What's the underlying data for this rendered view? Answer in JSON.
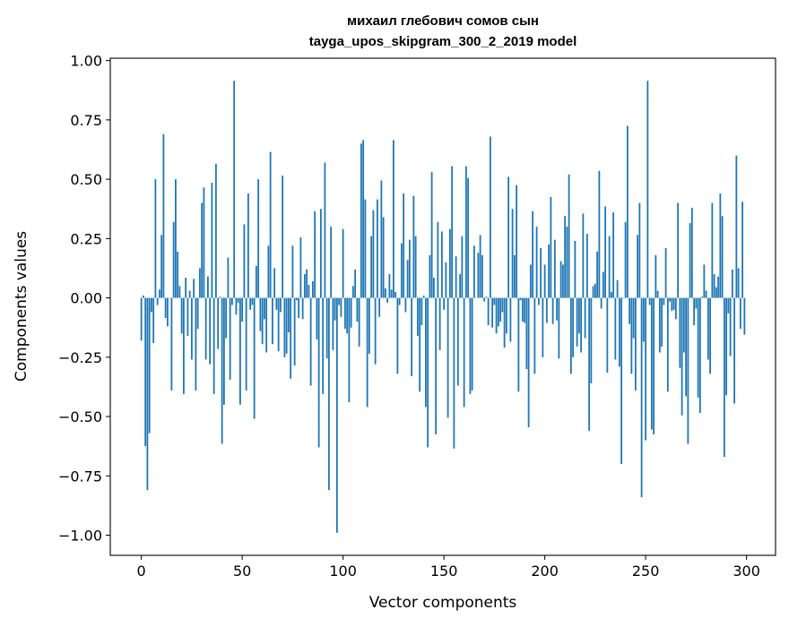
{
  "chart_data": {
    "type": "bar",
    "title_line1": "михаил глебович сомов сын",
    "title_line2": "tayga_upos_skipgram_300_2_2019 model",
    "xlabel": "Vector components",
    "ylabel": "Components values",
    "xlim": [
      -15.4,
      314.4
    ],
    "ylim": [
      -1.085,
      1.01
    ],
    "xticks": [
      0,
      50,
      100,
      150,
      200,
      250,
      300
    ],
    "xtick_labels": [
      "0",
      "50",
      "100",
      "150",
      "200",
      "250",
      "300"
    ],
    "yticks": [
      -1.0,
      -0.75,
      -0.5,
      -0.25,
      0.0,
      0.25,
      0.5,
      0.75,
      1.0
    ],
    "ytick_labels": [
      "−1.00",
      "−0.75",
      "−0.50",
      "−0.25",
      "0.00",
      "0.25",
      "0.50",
      "0.75",
      "1.00"
    ],
    "bar_color": "#1f77b4",
    "grid": false,
    "values": [
      -0.18,
      0.01,
      -0.625,
      -0.81,
      -0.57,
      -0.06,
      -0.19,
      0.5,
      -0.03,
      0.035,
      0.265,
      0.69,
      -0.085,
      -0.12,
      0.0,
      -0.39,
      0.32,
      0.5,
      0.195,
      0.05,
      -0.15,
      -0.405,
      0.085,
      -0.16,
      0.03,
      -0.26,
      0.08,
      -0.39,
      -0.13,
      0.125,
      0.4,
      0.465,
      -0.26,
      0.09,
      -0.28,
      0.485,
      -0.405,
      0.565,
      -0.215,
      0.005,
      -0.615,
      -0.45,
      -0.17,
      0.17,
      -0.345,
      -0.03,
      0.915,
      -0.07,
      -0.02,
      -0.45,
      -0.1,
      0.31,
      -0.39,
      0.44,
      -0.05,
      -0.03,
      -0.51,
      0.135,
      0.5,
      -0.14,
      -0.195,
      -0.09,
      -0.23,
      0.22,
      0.615,
      -0.195,
      0.125,
      -0.05,
      -0.225,
      -0.06,
      0.515,
      -0.25,
      -0.235,
      -0.145,
      -0.34,
      0.22,
      -0.285,
      -0.01,
      -0.085,
      0.255,
      -0.09,
      0.1,
      0.12,
      0.055,
      -0.37,
      0.07,
      0.365,
      -0.175,
      -0.63,
      0.375,
      -0.405,
      0.57,
      -0.255,
      -0.81,
      0.3,
      -0.22,
      -0.095,
      -0.99,
      -0.03,
      -0.08,
      0.29,
      -0.13,
      -0.15,
      -0.44,
      -0.125,
      0.05,
      0.12,
      -0.1,
      -0.205,
      0.65,
      0.665,
      0.415,
      -0.46,
      -0.235,
      0.26,
      0.37,
      -0.28,
      0.415,
      -0.08,
      0.495,
      0.34,
      0.04,
      -0.02,
      0.1,
      0.035,
      0.665,
      0.025,
      -0.32,
      -0.03,
      0.23,
      0.44,
      -0.06,
      0.16,
      0.245,
      -0.33,
      0.43,
      0.26,
      -0.16,
      -0.395,
      -0.115,
      0.01,
      -0.46,
      -0.63,
      0.18,
      0.53,
      0.085,
      -0.575,
      0.32,
      -0.22,
      0.28,
      -0.05,
      0.15,
      -0.505,
      0.29,
      0.555,
      -0.635,
      0.175,
      -0.37,
      0.1,
      0.26,
      -0.46,
      0.555,
      0.505,
      -0.405,
      -0.39,
      0.22,
      0.0,
      0.19,
      0.265,
      0.18,
      -0.015,
      0.005,
      -0.115,
      0.68,
      -0.125,
      -0.03,
      -0.15,
      -0.12,
      -0.1,
      -0.06,
      -0.21,
      -0.15,
      0.51,
      -0.185,
      0.375,
      0.18,
      0.475,
      -0.395,
      -0.01,
      -0.1,
      -0.105,
      -0.3,
      -0.545,
      0.14,
      0.365,
      -0.32,
      0.3,
      -0.03,
      0.21,
      -0.25,
      0.14,
      -0.105,
      0.225,
      0.425,
      -0.11,
      0.245,
      -0.095,
      -0.255,
      0.155,
      0.14,
      0.345,
      0.3,
      0.52,
      -0.32,
      -0.25,
      0.24,
      -0.205,
      -0.15,
      -0.23,
      0.355,
      -0.17,
      0.27,
      -0.56,
      -0.36,
      0.05,
      0.06,
      0.195,
      0.535,
      -0.045,
      0.11,
      0.385,
      -0.315,
      0.26,
      0.025,
      0.36,
      -0.26,
      0.075,
      -0.29,
      -0.7,
      -0.002,
      0.32,
      0.725,
      -0.11,
      -0.32,
      -0.17,
      -0.39,
      0.265,
      0.4,
      -0.84,
      -0.185,
      -0.6,
      0.915,
      -0.03,
      -0.555,
      -0.575,
      0.18,
      0.03,
      -0.23,
      -0.205,
      -0.03,
      0.21,
      -0.395,
      -0.015,
      -0.055,
      -0.05,
      -0.09,
      0.4,
      -0.295,
      -0.495,
      -0.23,
      -0.415,
      -0.615,
      0.315,
      0.38,
      -0.115,
      -0.045,
      -0.42,
      -0.485,
      0.005,
      0.14,
      0.03,
      -0.26,
      -0.32,
      0.4,
      0.1,
      0.045,
      0.09,
      0.44,
      0.345,
      -0.67,
      -0.41,
      -0.065,
      -0.245,
      0.12,
      -0.445,
      0.6,
      0.125,
      -0.13,
      0.405,
      -0.155
    ]
  }
}
